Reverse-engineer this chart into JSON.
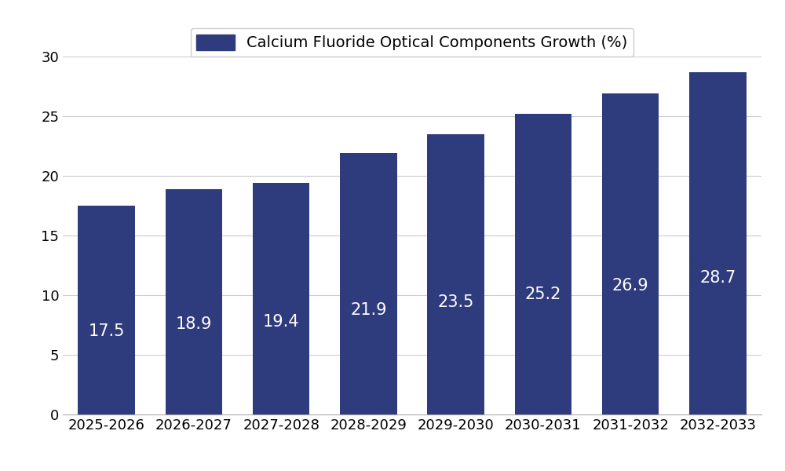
{
  "categories": [
    "2025-2026",
    "2026-2027",
    "2027-2028",
    "2028-2029",
    "2029-2030",
    "2030-2031",
    "2031-2032",
    "2032-2033"
  ],
  "values": [
    17.5,
    18.9,
    19.4,
    21.9,
    23.5,
    25.2,
    26.9,
    28.7
  ],
  "bar_color": "#2E3B7C",
  "legend_label": "Calcium Fluoride Optical Components Growth (%)",
  "ylim": [
    0,
    30
  ],
  "yticks": [
    0,
    5,
    10,
    15,
    20,
    25,
    30
  ],
  "label_color": "#FFFFFF",
  "label_fontsize": 15,
  "tick_fontsize": 13,
  "legend_fontsize": 14,
  "background_color": "#FFFFFF",
  "grid_color": "#CCCCCC",
  "bar_width": 0.65
}
